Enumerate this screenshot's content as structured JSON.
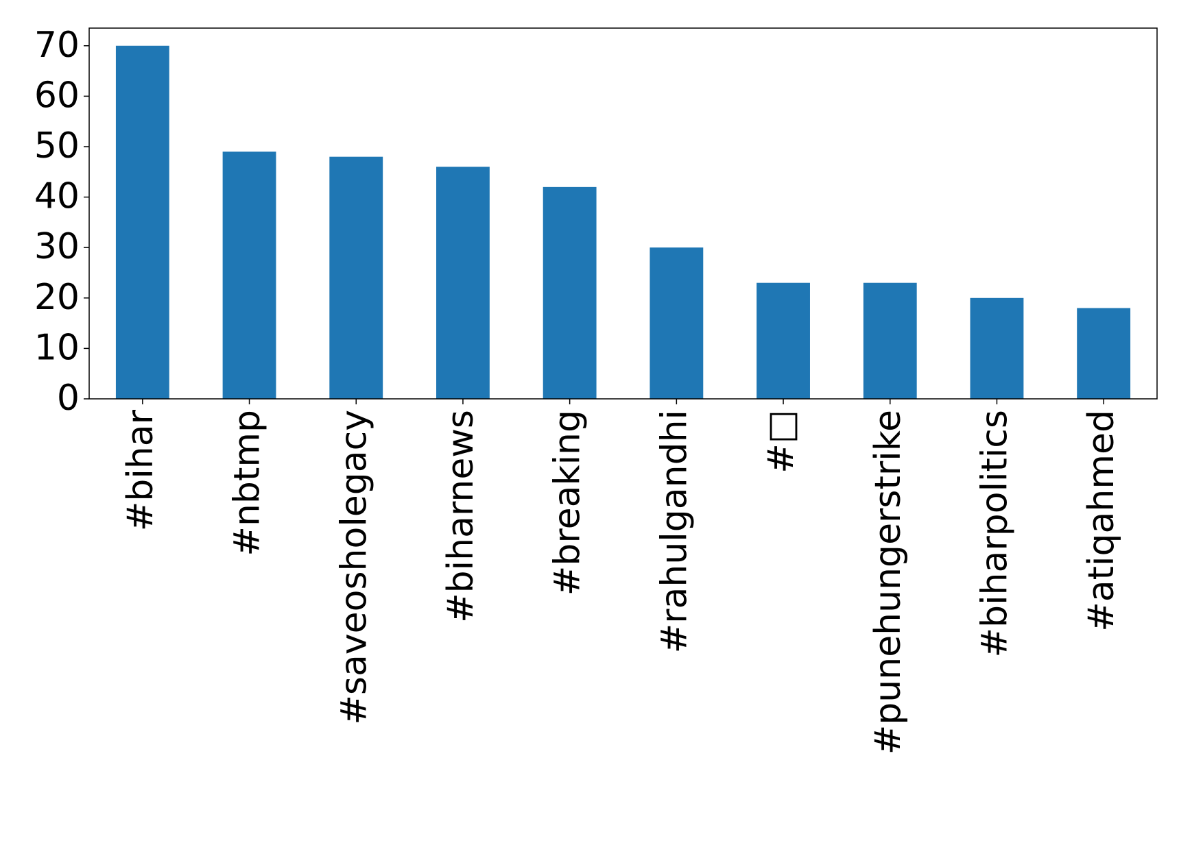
{
  "chart_data": {
    "type": "bar",
    "categories": [
      "#bihar",
      "#nbtmp",
      "#saveosholegacy",
      "#biharnews",
      "#breaking",
      "#rahulgandhi",
      "#□",
      "#punehungerstrike",
      "#biharpolitics",
      "#atiqahmed"
    ],
    "values": [
      70,
      49,
      48,
      46,
      42,
      30,
      23,
      23,
      20,
      18
    ],
    "color": "#1f77b4",
    "ylim": [
      0,
      73.5
    ],
    "yticks": [
      0,
      10,
      20,
      30,
      40,
      50,
      60,
      70
    ],
    "grid": false
  }
}
